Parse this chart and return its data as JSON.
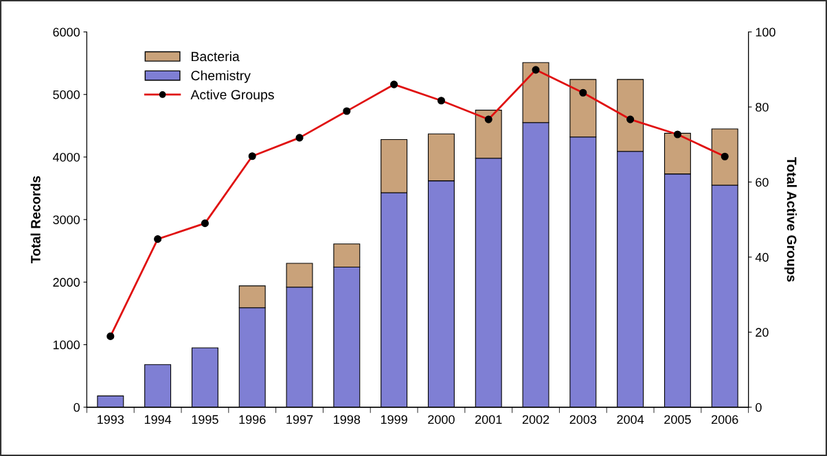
{
  "chart_data": {
    "type": "bar",
    "stacked": true,
    "ylabel": "Total Records",
    "y2label": "Total Active Groups",
    "categories": [
      "1993",
      "1994",
      "1995",
      "1996",
      "1997",
      "1998",
      "1999",
      "2000",
      "2001",
      "2002",
      "2003",
      "2004",
      "2005",
      "2006"
    ],
    "series": [
      {
        "name": "Chemistry",
        "color": "#7f7fd4",
        "values": [
          180,
          680,
          950,
          1590,
          1920,
          2240,
          3430,
          3620,
          3980,
          4550,
          4320,
          4090,
          3730,
          3550
        ]
      },
      {
        "name": "Bacteria",
        "color": "#c9a27a",
        "values": [
          0,
          0,
          0,
          350,
          380,
          370,
          850,
          750,
          770,
          960,
          920,
          1150,
          650,
          900
        ]
      },
      {
        "name": "Active Groups",
        "type": "line",
        "axis": "y2",
        "color": "#e01010",
        "marker": "circle",
        "values": [
          18.9,
          44.8,
          49,
          66.9,
          71.8,
          78.9,
          86,
          81.7,
          76.7,
          89.9,
          83.8,
          76.7,
          72.7,
          66.8
        ]
      }
    ],
    "ylim": [
      0,
      6000
    ],
    "yticks": [
      0,
      1000,
      2000,
      3000,
      4000,
      5000,
      6000
    ],
    "y2lim": [
      0,
      100
    ],
    "y2ticks": [
      0,
      20,
      40,
      60,
      80,
      100
    ],
    "grid": false,
    "legend": "top left"
  }
}
